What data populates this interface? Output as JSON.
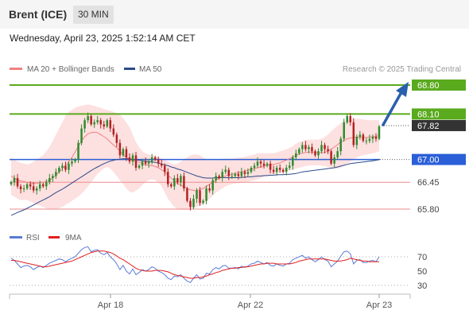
{
  "header": {
    "title": "Brent (ICE)",
    "timeframe": "30 MIN"
  },
  "datetime": "Wednesday, April 23, 2025 1:52:14 AM CET",
  "copyright": "Research © 2025 Trading Central",
  "colors": {
    "resistance": "#5aaa1e",
    "pivot": "#2b5fd8",
    "support": "#ee8c8c",
    "price": "#333333",
    "candle_up": "#2e8b2e",
    "candle_down": "#b22222",
    "bb_fill": "#fde0e0",
    "ma20": "#f08080",
    "ma50": "#2d4a8a",
    "rsi": "#5b7bd5",
    "rsi_ma": "#e02020",
    "arrow": "#2a5fad"
  },
  "chart_data": [
    {
      "type": "candlestick",
      "legend": [
        "MA 20 + Bollinger Bands",
        "MA 50"
      ],
      "x_ticks": [
        "Apr 18",
        "Apr 22",
        "Apr 23"
      ],
      "y_range": [
        65.53,
        69.07
      ],
      "levels": [
        {
          "value": 68.8,
          "label": "68.80",
          "kind": "resistance"
        },
        {
          "value": 68.1,
          "label": "68.10",
          "kind": "resistance"
        },
        {
          "value": 67.82,
          "label": "67.82",
          "kind": "price"
        },
        {
          "value": 67.0,
          "label": "67.00",
          "kind": "pivot"
        },
        {
          "value": 66.45,
          "label": "66.45",
          "kind": "support"
        },
        {
          "value": 65.8,
          "label": "65.80",
          "kind": "support"
        }
      ],
      "closes": [
        66.45,
        66.55,
        66.35,
        66.28,
        66.3,
        66.4,
        66.35,
        66.25,
        66.3,
        66.4,
        66.35,
        66.45,
        66.55,
        66.6,
        66.7,
        66.8,
        66.85,
        66.75,
        66.9,
        66.95,
        67.0,
        67.4,
        67.75,
        67.95,
        68.05,
        67.85,
        67.9,
        67.95,
        67.85,
        67.8,
        67.95,
        67.75,
        67.6,
        67.4,
        67.1,
        67.25,
        67.05,
        66.95,
        67.1,
        66.8,
        66.85,
        66.95,
        66.9,
        66.95,
        67.05,
        67.0,
        66.9,
        66.85,
        66.7,
        66.4,
        66.35,
        66.55,
        66.45,
        66.6,
        66.3,
        66.0,
        65.85,
        66.05,
        66.25,
        65.95,
        66.0,
        66.3,
        66.25,
        66.5,
        66.6,
        66.55,
        66.7,
        66.75,
        66.6,
        66.6,
        66.65,
        66.6,
        66.7,
        66.65,
        66.7,
        66.8,
        66.85,
        66.95,
        66.9,
        66.85,
        66.9,
        66.75,
        66.7,
        66.8,
        66.75,
        66.7,
        66.8,
        66.85,
        67.05,
        67.15,
        67.25,
        67.35,
        67.25,
        67.3,
        67.2,
        67.1,
        67.2,
        67.35,
        67.25,
        67.2,
        66.9,
        67.05,
        67.2,
        67.5,
        67.9,
        68.05,
        67.9,
        67.35,
        67.55,
        67.6,
        67.45,
        67.45,
        67.5,
        67.55,
        67.5,
        67.8
      ],
      "ma20": [
        66.6,
        66.55,
        66.5,
        66.48,
        66.47,
        66.45,
        66.43,
        66.42,
        66.42,
        66.43,
        66.45,
        66.47,
        66.5,
        66.55,
        66.62,
        66.7,
        66.78,
        66.85,
        66.95,
        67.05,
        67.18,
        67.32,
        67.45,
        67.55,
        67.62,
        67.65,
        67.66,
        67.65,
        67.6,
        67.55,
        67.5,
        67.42,
        67.35,
        67.28,
        67.2,
        67.12,
        67.05,
        67.0,
        66.97,
        66.95,
        66.93,
        66.9,
        66.88,
        66.86,
        66.85,
        66.83,
        66.8,
        66.75,
        66.7,
        66.62,
        66.55,
        66.48,
        66.42,
        66.38,
        66.34,
        66.3,
        66.27,
        66.25,
        66.25,
        66.27,
        66.3,
        66.35,
        66.4,
        66.45,
        66.5,
        66.55,
        66.58,
        66.6,
        66.62,
        66.64,
        66.66,
        66.68,
        66.7,
        66.72,
        66.74,
        66.76,
        66.78,
        66.8,
        66.82,
        66.84,
        66.86,
        66.87,
        66.88,
        66.9,
        66.92,
        66.95,
        66.98,
        67.02,
        67.06,
        67.1,
        67.13,
        67.15,
        67.17,
        67.18,
        67.18,
        67.17,
        67.16,
        67.16,
        67.17,
        67.2,
        67.25,
        67.3,
        67.36,
        67.42,
        67.46,
        67.5,
        67.52,
        67.53,
        67.54,
        67.54,
        67.53,
        67.53,
        67.54,
        67.55,
        67.56,
        67.58
      ],
      "bb_upper": [
        67.05,
        67.0,
        66.95,
        66.92,
        66.9,
        66.88,
        66.9,
        66.95,
        67.0,
        67.05,
        67.1,
        67.2,
        67.3,
        67.45,
        67.6,
        67.75,
        67.9,
        68.05,
        68.15,
        68.2,
        68.25,
        68.28,
        68.3,
        68.32,
        68.33,
        68.32,
        68.3,
        68.27,
        68.25,
        68.22,
        68.2,
        68.18,
        68.15,
        68.12,
        68.08,
        68.0,
        67.9,
        67.78,
        67.6,
        67.42,
        67.3,
        67.2,
        67.15,
        67.12,
        67.1,
        67.08,
        67.05,
        67.02,
        67.0,
        66.95,
        66.9,
        66.88,
        66.9,
        66.95,
        67.0,
        67.05,
        67.1,
        67.12,
        67.12,
        67.1,
        67.05,
        67.0,
        66.98,
        66.98,
        67.0,
        67.0,
        67.02,
        67.02,
        67.02,
        67.02,
        67.03,
        67.05,
        67.05,
        67.07,
        67.08,
        67.1,
        67.12,
        67.15,
        67.15,
        67.15,
        67.15,
        67.15,
        67.15,
        67.17,
        67.2,
        67.22,
        67.25,
        67.28,
        67.32,
        67.38,
        67.42,
        67.45,
        67.47,
        67.48,
        67.48,
        67.48,
        67.48,
        67.5,
        67.55,
        67.6,
        67.68,
        67.75,
        67.82,
        67.88,
        67.92,
        67.95,
        67.97,
        67.98,
        67.98,
        67.98,
        67.97,
        67.96,
        67.95,
        67.95,
        67.95,
        67.95
      ],
      "bb_lower": [
        66.15,
        66.1,
        66.05,
        66.02,
        66.02,
        66.02,
        65.98,
        65.95,
        65.9,
        65.88,
        65.85,
        65.82,
        65.8,
        65.78,
        65.8,
        65.82,
        65.85,
        65.9,
        65.95,
        66.0,
        66.05,
        66.1,
        66.18,
        66.25,
        66.35,
        66.45,
        66.55,
        66.65,
        66.72,
        66.78,
        66.82,
        66.78,
        66.7,
        66.6,
        66.5,
        66.4,
        66.3,
        66.22,
        66.2,
        66.25,
        66.3,
        66.38,
        66.45,
        66.5,
        66.52,
        66.5,
        66.45,
        66.35,
        66.2,
        66.05,
        65.95,
        65.85,
        65.8,
        65.78,
        65.78,
        65.78,
        65.8,
        65.82,
        65.85,
        65.88,
        65.92,
        65.98,
        66.05,
        66.12,
        66.2,
        66.25,
        66.3,
        66.35,
        66.38,
        66.4,
        66.42,
        66.43,
        66.44,
        66.45,
        66.46,
        66.48,
        66.5,
        66.52,
        66.55,
        66.58,
        66.6,
        66.62,
        66.65,
        66.67,
        66.68,
        66.7,
        66.72,
        66.74,
        66.76,
        66.78,
        66.8,
        66.82,
        66.84,
        66.85,
        66.86,
        66.86,
        66.86,
        66.85,
        66.84,
        66.82,
        66.8,
        66.78,
        66.78,
        66.8,
        66.85,
        66.9,
        66.95,
        67.0,
        67.05,
        67.08,
        67.1,
        67.12,
        67.13,
        67.15,
        67.17,
        67.2
      ],
      "ma50": [
        65.65,
        65.68,
        65.72,
        65.75,
        65.78,
        65.82,
        65.86,
        65.9,
        65.94,
        65.98,
        66.02,
        66.06,
        66.1,
        66.15,
        66.2,
        66.24,
        66.28,
        66.33,
        66.38,
        66.43,
        66.48,
        66.53,
        66.58,
        66.63,
        66.68,
        66.73,
        66.78,
        66.82,
        66.86,
        66.9,
        66.93,
        66.96,
        66.98,
        67.0,
        67.01,
        67.02,
        67.02,
        67.01,
        67.0,
        66.99,
        66.98,
        66.97,
        66.96,
        66.95,
        66.94,
        66.93,
        66.91,
        66.89,
        66.87,
        66.85,
        66.82,
        66.8,
        66.77,
        66.75,
        66.72,
        66.69,
        66.66,
        66.63,
        66.6,
        66.58,
        66.56,
        66.55,
        66.55,
        66.55,
        66.56,
        66.56,
        66.56,
        66.56,
        66.56,
        66.56,
        66.56,
        66.56,
        66.57,
        66.57,
        66.58,
        66.58,
        66.59,
        66.6,
        66.6,
        66.61,
        66.61,
        66.62,
        66.62,
        66.63,
        66.63,
        66.63,
        66.64,
        66.64,
        66.65,
        66.66,
        66.68,
        66.7,
        66.71,
        66.72,
        66.73,
        66.74,
        66.75,
        66.76,
        66.77,
        66.78,
        66.79,
        66.8,
        66.82,
        66.84,
        66.86,
        66.88,
        66.9,
        66.91,
        66.92,
        66.93,
        66.94,
        66.95,
        66.96,
        66.97,
        66.98,
        67.0
      ]
    },
    {
      "type": "line",
      "legend": [
        "RSI",
        "9MA"
      ],
      "y_ticks": [
        70,
        50,
        30
      ],
      "y_range": [
        15,
        88
      ],
      "rsi": [
        68,
        65,
        60,
        55,
        57,
        58,
        56,
        52,
        55,
        57,
        55,
        58,
        61,
        63,
        65,
        67,
        66,
        63,
        66,
        68,
        70,
        75,
        80,
        83,
        84,
        77,
        79,
        80,
        75,
        73,
        76,
        70,
        66,
        60,
        52,
        58,
        50,
        46,
        53,
        45,
        48,
        52,
        50,
        52,
        56,
        54,
        50,
        48,
        45,
        40,
        38,
        43,
        42,
        45,
        40,
        36,
        34,
        40,
        45,
        39,
        40,
        47,
        46,
        52,
        55,
        53,
        57,
        58,
        54,
        54,
        55,
        53,
        57,
        55,
        57,
        60,
        61,
        64,
        62,
        60,
        62,
        58,
        57,
        60,
        58,
        57,
        60,
        61,
        66,
        68,
        70,
        72,
        68,
        70,
        66,
        63,
        66,
        70,
        66,
        64,
        56,
        60,
        64,
        71,
        77,
        78,
        74,
        60,
        65,
        66,
        62,
        62,
        64,
        65,
        63,
        70
      ],
      "rsi_ma": [
        65,
        65,
        64,
        63,
        62,
        61,
        60,
        59,
        58,
        57,
        56,
        56,
        57,
        58,
        59,
        60,
        61,
        62,
        63,
        64,
        66,
        68,
        70,
        72,
        74,
        76,
        77,
        78,
        78,
        78,
        77,
        76,
        74,
        71,
        68,
        66,
        63,
        60,
        57,
        54,
        52,
        51,
        50,
        50,
        50,
        51,
        51,
        51,
        50,
        49,
        47,
        45,
        44,
        43,
        42,
        41,
        40,
        40,
        41,
        41,
        42,
        43,
        45,
        46,
        48,
        49,
        51,
        52,
        53,
        54,
        54,
        55,
        55,
        56,
        56,
        57,
        58,
        59,
        60,
        60,
        61,
        61,
        61,
        60,
        60,
        60,
        60,
        60,
        61,
        62,
        64,
        65,
        66,
        67,
        67,
        67,
        67,
        67,
        67,
        66,
        65,
        64,
        64,
        64,
        65,
        66,
        68,
        67,
        66,
        65,
        64,
        64,
        63,
        63,
        63,
        63
      ],
      "x_ticks": [
        "Apr 18",
        "Apr 22",
        "Apr 23"
      ]
    }
  ]
}
